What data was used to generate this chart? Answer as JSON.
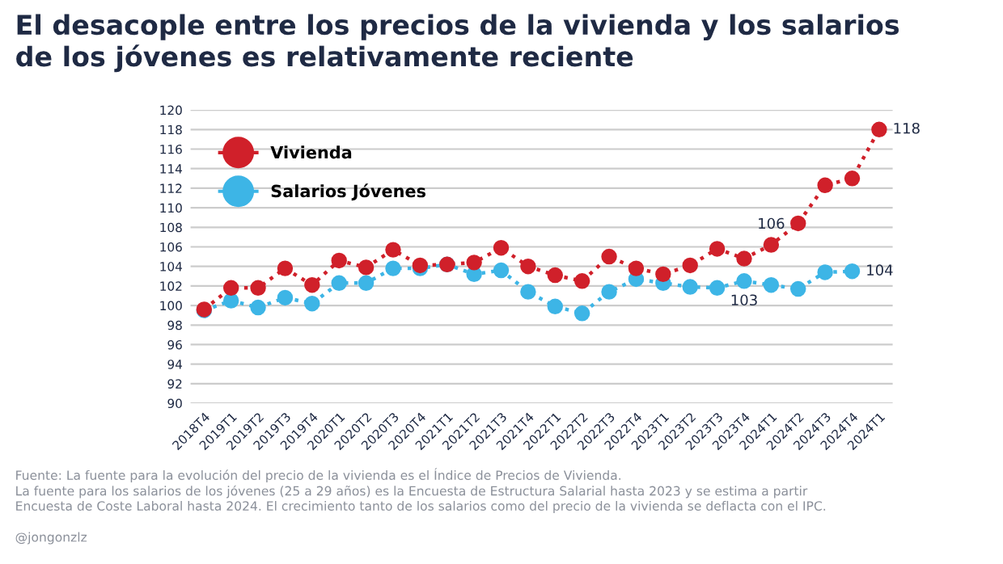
{
  "chart_data": {
    "type": "line",
    "title": "El desacople entre los precios de la vivienda y los salarios\nde los jóvenes es relativamente reciente",
    "categories": [
      "2018T4",
      "2019T1",
      "2019T2",
      "2019T3",
      "2019T4",
      "2020T1",
      "2020T2",
      "2020T3",
      "2020T4",
      "2021T1",
      "2021T2",
      "2021T3",
      "2021T4",
      "2022T1",
      "2022T2",
      "2022T3",
      "2022T4",
      "2023T1",
      "2023T2",
      "2023T3",
      "2023T4",
      "2024T1",
      "2024T2",
      "2024T3",
      "2024T4",
      "2024T1"
    ],
    "series": [
      {
        "name": "Vivienda",
        "color": "#d0202a",
        "values": [
          99.6,
          101.8,
          101.8,
          103.8,
          102.1,
          104.6,
          103.9,
          105.7,
          104.1,
          104.2,
          104.4,
          105.9,
          104.0,
          103.1,
          102.5,
          105.0,
          103.8,
          103.2,
          104.1,
          105.8,
          104.8,
          106.2,
          108.4,
          112.3,
          113.0,
          118.0
        ],
        "value_labels": [
          null,
          null,
          null,
          null,
          null,
          null,
          null,
          null,
          null,
          null,
          null,
          null,
          null,
          null,
          null,
          null,
          null,
          null,
          null,
          null,
          null,
          "106",
          null,
          null,
          null,
          "118"
        ]
      },
      {
        "name": "Salarios Jóvenes",
        "color": "#3db5e6",
        "values": [
          99.5,
          100.5,
          99.8,
          100.8,
          100.2,
          102.3,
          102.3,
          103.8,
          103.8,
          104.2,
          103.2,
          103.6,
          101.4,
          99.9,
          99.2,
          101.4,
          102.7,
          102.3,
          101.9,
          101.8,
          102.5,
          102.1,
          101.7,
          103.4,
          103.5,
          null
        ],
        "value_labels": [
          null,
          null,
          null,
          null,
          null,
          null,
          null,
          null,
          null,
          null,
          null,
          null,
          null,
          null,
          null,
          null,
          null,
          null,
          null,
          null,
          "103",
          null,
          null,
          null,
          "104",
          null
        ]
      }
    ],
    "ylim": [
      90,
      120
    ],
    "yticks": [
      90,
      92,
      94,
      96,
      98,
      100,
      102,
      104,
      106,
      108,
      110,
      112,
      114,
      116,
      118,
      120
    ],
    "grid": "y",
    "legend": "top left",
    "marker": "circle",
    "line_style": "dotted",
    "annotations": [
      "Fuente: La fuente para la evolución del precio de la vivienda es el Índice de Precios de Vivienda.\nLa fuente para los salarios de los jóvenes (25 a 29 años) es la Encuesta de Estructura Salarial hasta 2023 y se estima a partir\nEncuesta de Coste Laboral hasta 2024. El crecimiento tanto de los salarios como del precio de la vivienda se deflacta con el IPC.",
      "@jongonzlz"
    ]
  }
}
